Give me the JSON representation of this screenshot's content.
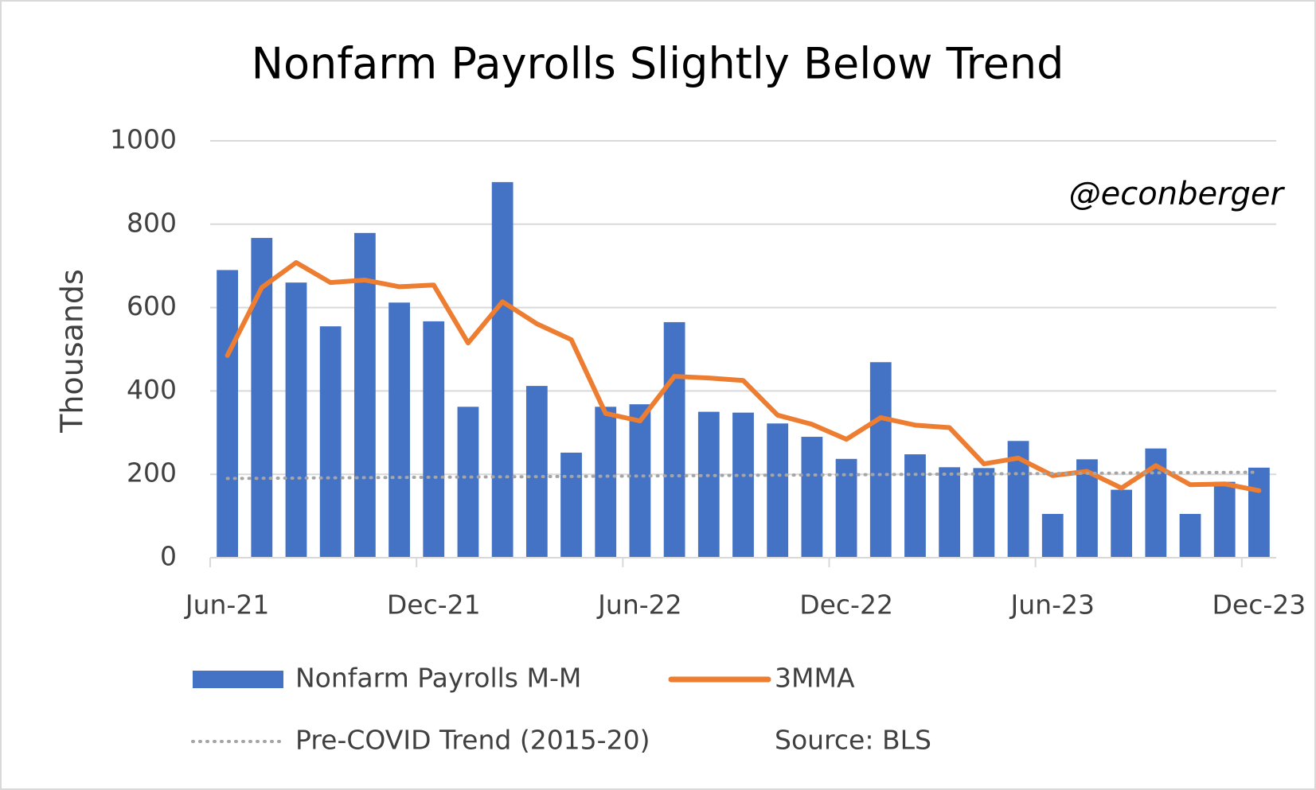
{
  "chart_data": {
    "type": "bar",
    "title": "Nonfarm Payrolls Slightly Below Trend",
    "y_label": "Thousands",
    "annotations": [
      "@econberger",
      "Source: BLS"
    ],
    "categories": [
      "Jun-21",
      null,
      null,
      null,
      null,
      null,
      "Dec-21",
      null,
      null,
      null,
      null,
      null,
      "Jun-22",
      null,
      null,
      null,
      null,
      null,
      "Dec-22",
      null,
      null,
      null,
      null,
      null,
      "Jun-23",
      null,
      null,
      null,
      null,
      null,
      "Dec-23"
    ],
    "series": [
      {
        "name": "Nonfarm Payrolls M-M",
        "type": "bar",
        "color": "#4472c4",
        "values": [
          690,
          767,
          660,
          555,
          779,
          612,
          567,
          362,
          901,
          412,
          252,
          362,
          368,
          565,
          350,
          348,
          322,
          290,
          237,
          469,
          248,
          217,
          215,
          280,
          105,
          236,
          163,
          262,
          105,
          182,
          216
        ]
      },
      {
        "name": "3MMA",
        "type": "line",
        "color": "#ed7d31",
        "values": [
          485,
          648,
          708,
          660,
          666,
          650,
          654,
          515,
          614,
          561,
          523,
          346,
          328,
          435,
          431,
          425,
          342,
          320,
          284,
          336,
          318,
          312,
          225,
          239,
          197,
          207,
          167,
          221,
          175,
          177,
          161
        ]
      },
      {
        "name": "Pre-COVID Trend (2015-20)",
        "type": "dotted",
        "color": "#a5a5a5",
        "values": [
          190,
          190.5,
          191,
          191.5,
          192,
          192.5,
          193,
          193.5,
          194,
          194.5,
          195,
          195.5,
          196,
          196.5,
          197,
          197.5,
          198,
          198.5,
          199,
          199.5,
          200,
          200.5,
          201,
          201.5,
          202,
          202.5,
          203,
          203.5,
          204,
          204.5,
          205
        ]
      }
    ],
    "ylim": [
      0,
      1000
    ],
    "yticks": [
      0,
      200,
      400,
      600,
      800,
      1000
    ],
    "grid": true
  }
}
